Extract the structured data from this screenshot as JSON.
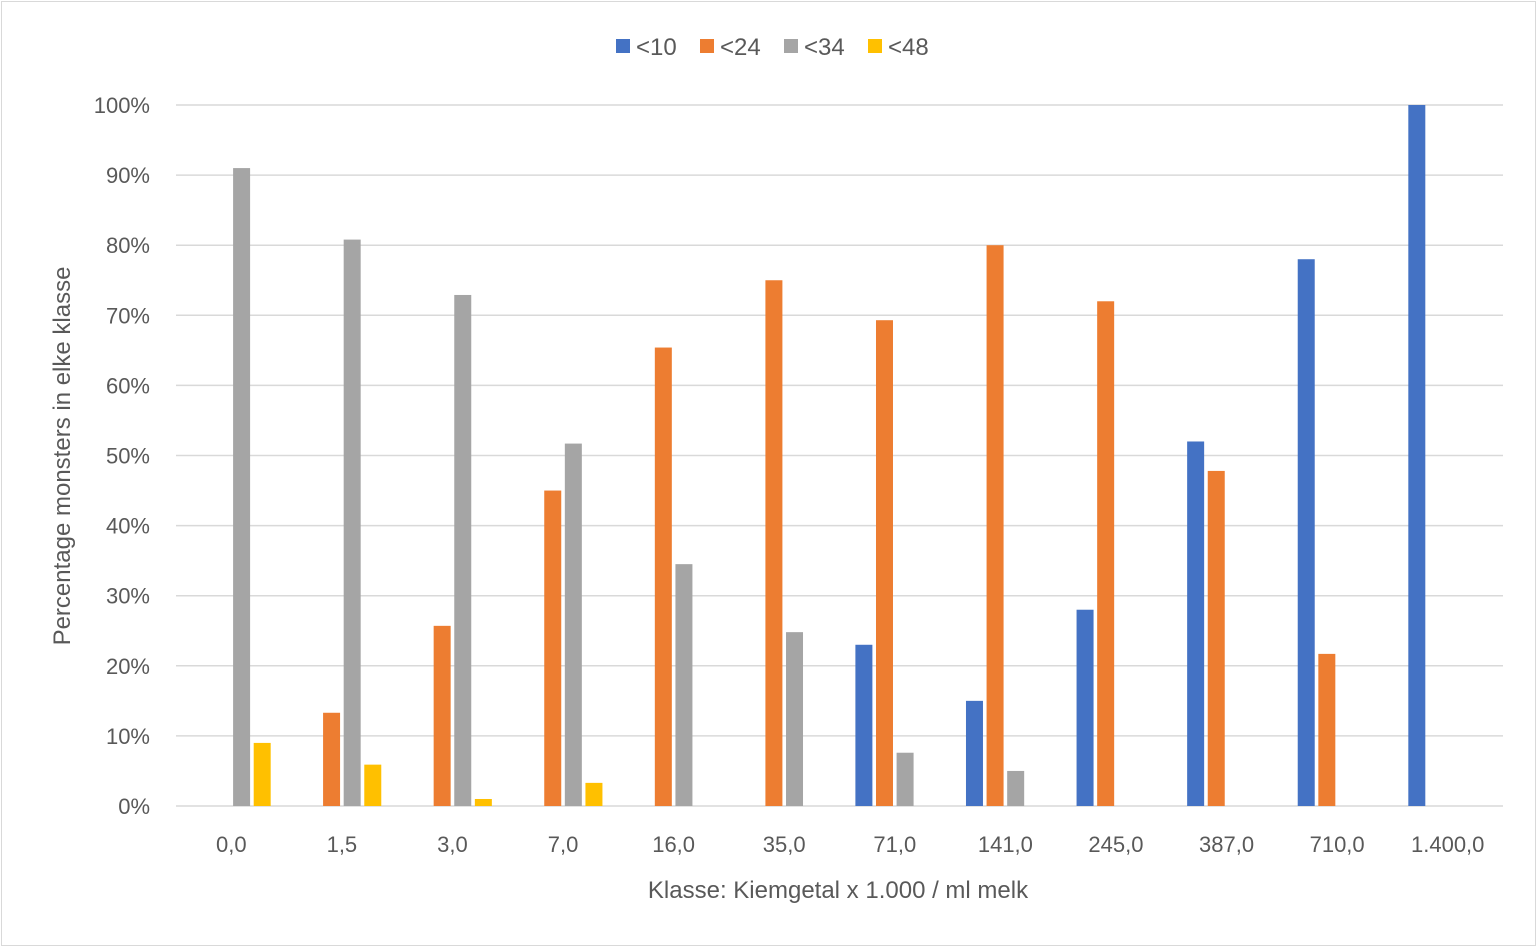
{
  "chart_data": {
    "type": "bar",
    "title": "",
    "xlabel": "Klasse: Kiemgetal x 1.000 / ml melk",
    "ylabel": "Percentage monsters in elke klasse",
    "ylim": [
      0,
      100
    ],
    "yticks": [
      "0%",
      "10%",
      "20%",
      "30%",
      "40%",
      "50%",
      "60%",
      "70%",
      "80%",
      "90%",
      "100%"
    ],
    "categories": [
      "0,0",
      "1,5",
      "3,0",
      "7,0",
      "16,0",
      "35,0",
      "71,0",
      "141,0",
      "245,0",
      "387,0",
      "710,0",
      "1.400,0"
    ],
    "series": [
      {
        "name": "<10",
        "color": "#4472C4",
        "values": [
          0,
          0,
          0,
          0,
          0,
          0,
          23,
          15,
          28,
          52,
          78,
          100
        ]
      },
      {
        "name": "<24",
        "color": "#ED7D31",
        "values": [
          0,
          13.3,
          25.7,
          45,
          65.4,
          75,
          69.3,
          80,
          72,
          47.8,
          21.7,
          0
        ]
      },
      {
        "name": "<34",
        "color": "#A5A5A5",
        "values": [
          91,
          80.8,
          72.9,
          51.7,
          34.5,
          24.8,
          7.6,
          5,
          0,
          0,
          0,
          0
        ]
      },
      {
        "name": "<48",
        "color": "#FFC000",
        "values": [
          9,
          5.9,
          1,
          3.3,
          0,
          0,
          0,
          0,
          0,
          0,
          0,
          0
        ]
      }
    ],
    "grid": true,
    "legend": "top-center"
  }
}
